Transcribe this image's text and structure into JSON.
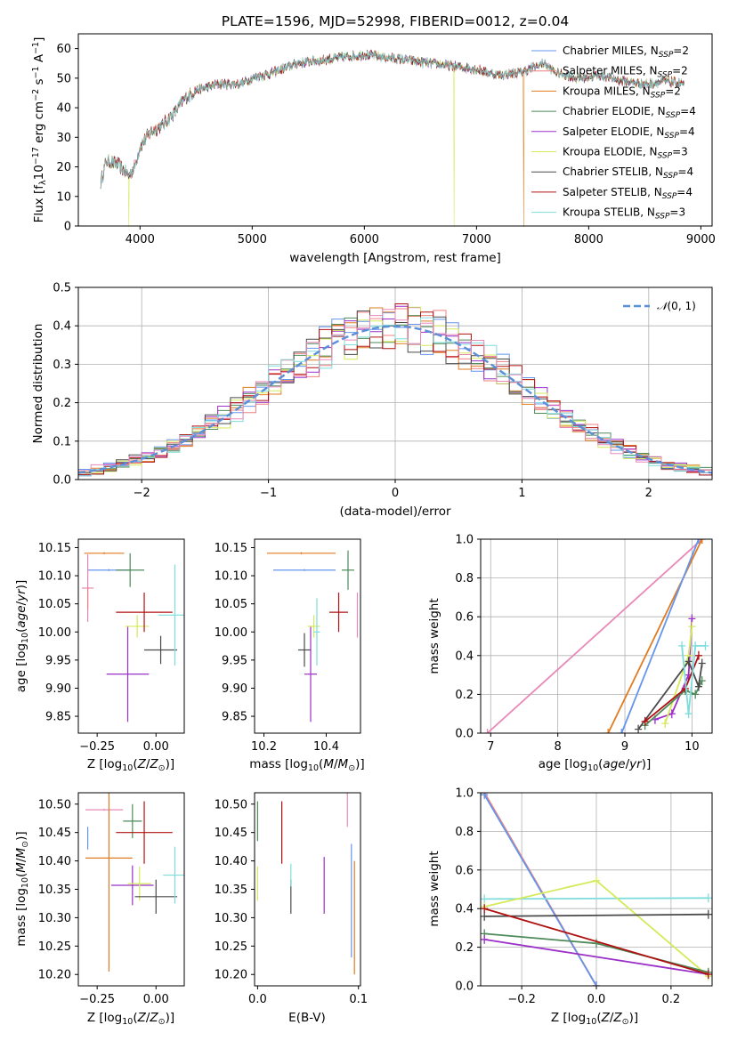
{
  "colors": {
    "blue": "#6495ed",
    "salmon": "#f08080",
    "orange": "#e07b20",
    "green": "#4e8a5a",
    "purple": "#9b30c8",
    "yellow": "#d4ea5a",
    "darkgray": "#4a4a4a",
    "red": "#b01010",
    "cyan": "#7fdcdc",
    "pink": "#e888b8",
    "gauss": "#5b8fd8"
  },
  "chart_data": [
    {
      "type": "line",
      "title": "PLATE=1596, MJD=52998, FIBERID=0012, z=0.04",
      "xlabel": "wavelength [Angstrom, rest frame]",
      "ylabel": "Flux [f_λ 10^-17 erg cm^-2 s^-1 A^-1]",
      "xlim": [
        3450,
        9100
      ],
      "ylim": [
        0,
        65
      ],
      "xticks": [
        4000,
        5000,
        6000,
        7000,
        8000,
        9000
      ],
      "yticks": [
        0,
        10,
        20,
        30,
        40,
        50,
        60
      ],
      "legend_position": "upper-right",
      "legend": [
        {
          "name": "Chabrier MILES, N_SSP=2",
          "color": "blue"
        },
        {
          "name": "Salpeter MILES, N_SSP=2",
          "color": "salmon"
        },
        {
          "name": "Kroupa MILES, N_SSP=2",
          "color": "orange"
        },
        {
          "name": "Chabrier ELODIE, N_SSP=4",
          "color": "green"
        },
        {
          "name": "Salpeter ELODIE, N_SSP=4",
          "color": "purple"
        },
        {
          "name": "Kroupa ELODIE, N_SSP=3",
          "color": "yellow"
        },
        {
          "name": "Chabrier STELIB, N_SSP=4",
          "color": "darkgray"
        },
        {
          "name": "Salpeter STELIB, N_SSP=4",
          "color": "red"
        },
        {
          "name": "Kroupa STELIB, N_SSP=3",
          "color": "cyan"
        }
      ],
      "spectrum_continuum": [
        [
          3650,
          15
        ],
        [
          3700,
          22
        ],
        [
          3800,
          21
        ],
        [
          3900,
          17
        ],
        [
          3950,
          20
        ],
        [
          4000,
          27
        ],
        [
          4100,
          32
        ],
        [
          4200,
          34
        ],
        [
          4300,
          38
        ],
        [
          4400,
          43
        ],
        [
          4500,
          46
        ],
        [
          4700,
          48
        ],
        [
          4900,
          48
        ],
        [
          5000,
          50
        ],
        [
          5200,
          52
        ],
        [
          5400,
          55
        ],
        [
          5600,
          56
        ],
        [
          5800,
          57
        ],
        [
          6000,
          58
        ],
        [
          6200,
          57
        ],
        [
          6400,
          56
        ],
        [
          6600,
          55
        ],
        [
          6800,
          54
        ],
        [
          7000,
          53
        ],
        [
          7200,
          51
        ],
        [
          7400,
          52
        ],
        [
          7600,
          55
        ],
        [
          7700,
          52
        ],
        [
          7900,
          50
        ],
        [
          8100,
          51
        ],
        [
          8300,
          49
        ],
        [
          8500,
          48
        ],
        [
          8700,
          49
        ],
        [
          8850,
          48
        ]
      ],
      "dropouts": [
        {
          "x": 3900,
          "color": "yellow"
        },
        {
          "x": 6800,
          "color": "yellow"
        },
        {
          "x": 7420,
          "color": "orange"
        }
      ]
    },
    {
      "type": "bar",
      "subtype": "step-histogram",
      "xlabel": "(data-model)/error",
      "ylabel": "Normed distribution",
      "xlim": [
        -2.5,
        2.5
      ],
      "ylim": [
        0,
        0.5
      ],
      "xticks": [
        -2,
        -1,
        0,
        1,
        2
      ],
      "yticks": [
        0.0,
        0.1,
        0.2,
        0.3,
        0.4,
        0.5
      ],
      "grid": true,
      "legend_position": "upper-right",
      "legend": [
        {
          "name": "N(0,1)",
          "color": "gauss",
          "style": "dashed"
        }
      ],
      "series_colors": [
        "blue",
        "salmon",
        "orange",
        "green",
        "purple",
        "yellow",
        "darkgray",
        "red",
        "cyan",
        "pink"
      ],
      "bin_width": 0.1
    },
    {
      "type": "scatter",
      "subtype": "errorbars",
      "xlabel": "Z [log10(Z/Z⊙)]",
      "ylabel": "age  [log10(age/yr)]",
      "xlim": [
        -0.33,
        0.12
      ],
      "ylim": [
        9.82,
        10.165
      ],
      "xticks": [
        -0.25,
        0.0
      ],
      "yticks": [
        9.85,
        9.9,
        9.95,
        10.0,
        10.05,
        10.1,
        10.15
      ],
      "points": [
        {
          "x": -0.2,
          "y": 10.11,
          "xerr": 0.09,
          "yerr": 0.0,
          "color": "blue"
        },
        {
          "x": -0.29,
          "y": 10.078,
          "xerr": 0.025,
          "yerr": 0.06,
          "color": "pink"
        },
        {
          "x": -0.22,
          "y": 10.14,
          "xerr": 0.085,
          "yerr": 0.0,
          "color": "orange"
        },
        {
          "x": -0.11,
          "y": 10.11,
          "xerr": 0.06,
          "yerr": 0.03,
          "color": "green"
        },
        {
          "x": -0.12,
          "y": 9.925,
          "xerr": 0.09,
          "yerr": 0.085,
          "color": "purple"
        },
        {
          "x": -0.08,
          "y": 10.01,
          "xerr": 0.05,
          "yerr": 0.02,
          "color": "yellow"
        },
        {
          "x": 0.02,
          "y": 9.968,
          "xerr": 0.07,
          "yerr": 0.025,
          "color": "darkgray"
        },
        {
          "x": -0.05,
          "y": 10.035,
          "xerr": 0.12,
          "yerr": 0.035,
          "color": "red"
        },
        {
          "x": 0.08,
          "y": 10.03,
          "xerr": 0.07,
          "yerr": 0.09,
          "color": "cyan"
        },
        {
          "x": -0.29,
          "y": 10.06,
          "xerr": 0.0,
          "yerr": 0.02,
          "color": "salmon"
        }
      ]
    },
    {
      "type": "scatter",
      "subtype": "errorbars",
      "xlabel": "mass [log10(M/M⊙)]",
      "ylabel": "",
      "xlim": [
        10.17,
        10.51
      ],
      "ylim": [
        9.82,
        10.165
      ],
      "xticks": [
        10.2,
        10.4
      ],
      "yticks": [
        9.85,
        9.9,
        9.95,
        10.0,
        10.05,
        10.1,
        10.15
      ],
      "points": [
        {
          "x": 10.33,
          "y": 10.11,
          "xerr": 0.1,
          "yerr": 0.0,
          "color": "blue"
        },
        {
          "x": 10.32,
          "y": 10.14,
          "xerr": 0.11,
          "yerr": 0.0,
          "color": "orange"
        },
        {
          "x": 10.47,
          "y": 10.11,
          "xerr": 0.02,
          "yerr": 0.035,
          "color": "green"
        },
        {
          "x": 10.35,
          "y": 9.925,
          "xerr": 0.02,
          "yerr": 0.085,
          "color": "purple"
        },
        {
          "x": 10.36,
          "y": 10.01,
          "xerr": 0.02,
          "yerr": 0.02,
          "color": "yellow"
        },
        {
          "x": 10.33,
          "y": 9.968,
          "xerr": 0.02,
          "yerr": 0.03,
          "color": "darkgray"
        },
        {
          "x": 10.44,
          "y": 10.035,
          "xerr": 0.03,
          "yerr": 0.035,
          "color": "red"
        },
        {
          "x": 10.37,
          "y": 10.0,
          "xerr": 0.01,
          "yerr": 0.06,
          "color": "cyan"
        },
        {
          "x": 10.5,
          "y": 10.03,
          "xerr": 0.0,
          "yerr": 0.04,
          "color": "pink"
        }
      ]
    },
    {
      "type": "line",
      "xlabel": "age  [log10(age/yr)]",
      "ylabel": "mass weight",
      "xlim": [
        6.85,
        10.3
      ],
      "ylim": [
        0,
        1.0
      ],
      "xticks": [
        7,
        8,
        9,
        10
      ],
      "yticks": [
        0.0,
        0.2,
        0.4,
        0.6,
        0.8,
        1.0
      ],
      "grid": true,
      "series": [
        {
          "color": "pink",
          "x": [
            6.95,
            10.15
          ],
          "y": [
            0.0,
            1.0
          ]
        },
        {
          "color": "orange",
          "x": [
            8.75,
            10.15
          ],
          "y": [
            0.0,
            1.0
          ]
        },
        {
          "color": "blue",
          "x": [
            8.95,
            10.1
          ],
          "y": [
            0.0,
            1.0
          ]
        },
        {
          "color": "purple",
          "x": [
            9.45,
            9.7,
            9.95,
            10.0
          ],
          "y": [
            0.07,
            0.1,
            0.3,
            0.59
          ]
        },
        {
          "color": "yellow",
          "x": [
            9.6,
            9.95,
            10.0
          ],
          "y": [
            0.05,
            0.4,
            0.55
          ]
        },
        {
          "color": "green",
          "x": [
            9.3,
            9.9,
            10.05,
            10.15
          ],
          "y": [
            0.04,
            0.22,
            0.2,
            0.27
          ]
        },
        {
          "color": "darkgray",
          "x": [
            9.2,
            9.95,
            10.1,
            10.15
          ],
          "y": [
            0.02,
            0.37,
            0.24,
            0.36
          ]
        },
        {
          "color": "red",
          "x": [
            9.3,
            9.9,
            10.1
          ],
          "y": [
            0.06,
            0.23,
            0.4
          ]
        },
        {
          "color": "cyan",
          "x": [
            9.85,
            9.95,
            10.05,
            10.2
          ],
          "y": [
            0.45,
            0.1,
            0.45,
            0.45
          ]
        }
      ]
    },
    {
      "type": "scatter",
      "subtype": "errorbars",
      "xlabel": "Z [log10(Z/Z⊙)]",
      "ylabel": "mass [log10(M/M⊙)]",
      "xlim": [
        -0.33,
        0.12
      ],
      "ylim": [
        10.18,
        10.52
      ],
      "xticks": [
        -0.25,
        0.0
      ],
      "yticks": [
        10.2,
        10.25,
        10.3,
        10.35,
        10.4,
        10.45,
        10.5
      ],
      "points": [
        {
          "x": -0.29,
          "y": 10.44,
          "xerr": 0.0,
          "yerr": 0.02,
          "color": "blue"
        },
        {
          "x": -0.22,
          "y": 10.49,
          "xerr": 0.08,
          "yerr": 0.0,
          "color": "pink"
        },
        {
          "x": -0.2,
          "y": 10.405,
          "xerr": 0.1,
          "yerr": 0.2,
          "color": "orange"
        },
        {
          "x": -0.1,
          "y": 10.47,
          "xerr": 0.04,
          "yerr": 0.03,
          "color": "green"
        },
        {
          "x": -0.1,
          "y": 10.357,
          "xerr": 0.09,
          "yerr": 0.035,
          "color": "purple"
        },
        {
          "x": -0.07,
          "y": 10.36,
          "xerr": 0.05,
          "yerr": 0.03,
          "color": "yellow"
        },
        {
          "x": 0.0,
          "y": 10.337,
          "xerr": 0.09,
          "yerr": 0.03,
          "color": "darkgray"
        },
        {
          "x": -0.05,
          "y": 10.45,
          "xerr": 0.12,
          "yerr": 0.055,
          "color": "red"
        },
        {
          "x": 0.08,
          "y": 10.375,
          "xerr": 0.05,
          "yerr": 0.05,
          "color": "cyan"
        }
      ]
    },
    {
      "type": "scatter",
      "subtype": "errorbars",
      "xlabel": "E(B-V)",
      "ylabel": "",
      "xlim": [
        -0.003,
        0.102
      ],
      "ylim": [
        10.18,
        10.52
      ],
      "xticks": [
        0.0,
        0.1
      ],
      "yticks": [
        10.2,
        10.25,
        10.3,
        10.35,
        10.4,
        10.45,
        10.5
      ],
      "points": [
        {
          "x": 0.0,
          "y": 10.47,
          "xerr": 0.0,
          "yerr": 0.035,
          "color": "green"
        },
        {
          "x": 0.0,
          "y": 10.36,
          "xerr": 0.0,
          "yerr": 0.03,
          "color": "yellow"
        },
        {
          "x": 0.024,
          "y": 10.45,
          "xerr": 0.0,
          "yerr": 0.055,
          "color": "red"
        },
        {
          "x": 0.033,
          "y": 10.337,
          "xerr": 0.0,
          "yerr": 0.03,
          "color": "darkgray"
        },
        {
          "x": 0.033,
          "y": 10.375,
          "xerr": 0.0,
          "yerr": 0.02,
          "color": "cyan"
        },
        {
          "x": 0.066,
          "y": 10.357,
          "xerr": 0.0,
          "yerr": 0.05,
          "color": "purple"
        },
        {
          "x": 0.089,
          "y": 10.49,
          "xerr": 0.0,
          "yerr": 0.03,
          "color": "pink"
        },
        {
          "x": 0.093,
          "y": 10.33,
          "xerr": 0.0,
          "yerr": 0.1,
          "color": "blue"
        },
        {
          "x": 0.096,
          "y": 10.3,
          "xerr": 0.0,
          "yerr": 0.1,
          "color": "orange"
        }
      ]
    },
    {
      "type": "line",
      "xlabel": "Z [log10(Z/Z⊙)]",
      "ylabel": "mass weight",
      "xlim": [
        -0.31,
        0.31
      ],
      "ylim": [
        0,
        1.0
      ],
      "xticks": [
        -0.2,
        0.0,
        0.2
      ],
      "yticks": [
        0.0,
        0.2,
        0.4,
        0.6,
        0.8,
        1.0
      ],
      "grid": true,
      "series": [
        {
          "color": "orange",
          "x": [
            -0.3,
            0.0
          ],
          "y": [
            1.0,
            0.0
          ]
        },
        {
          "color": "salmon",
          "x": [
            -0.3,
            0.0
          ],
          "y": [
            1.0,
            0.0
          ]
        },
        {
          "color": "blue",
          "x": [
            -0.3,
            0.0
          ],
          "y": [
            0.99,
            0.0
          ]
        },
        {
          "color": "cyan",
          "x": [
            -0.3,
            0.3
          ],
          "y": [
            0.45,
            0.455
          ]
        },
        {
          "color": "yellow",
          "x": [
            -0.3,
            0.0,
            0.3
          ],
          "y": [
            0.41,
            0.545,
            0.05
          ]
        },
        {
          "color": "darkgray",
          "x": [
            -0.3,
            0.3
          ],
          "y": [
            0.36,
            0.37
          ]
        },
        {
          "color": "green",
          "x": [
            -0.3,
            0.0,
            0.3
          ],
          "y": [
            0.27,
            0.22,
            0.07
          ]
        },
        {
          "color": "purple",
          "x": [
            -0.3,
            0.3
          ],
          "y": [
            0.24,
            0.06
          ]
        },
        {
          "color": "red",
          "x": [
            -0.3,
            0.3
          ],
          "y": [
            0.4,
            0.06
          ]
        }
      ]
    }
  ]
}
